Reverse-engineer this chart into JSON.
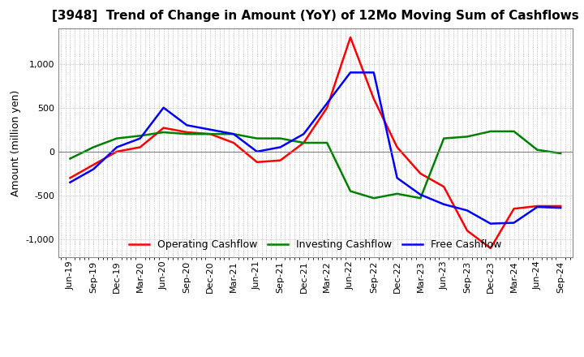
{
  "title": "[3948]  Trend of Change in Amount (YoY) of 12Mo Moving Sum of Cashflows",
  "ylabel": "Amount (million yen)",
  "ylim": [
    -1200,
    1400
  ],
  "yticks": [
    -1000,
    -500,
    0,
    500,
    1000
  ],
  "x_labels": [
    "Jun-19",
    "Sep-19",
    "Dec-19",
    "Mar-20",
    "Jun-20",
    "Sep-20",
    "Dec-20",
    "Mar-21",
    "Jun-21",
    "Sep-21",
    "Dec-21",
    "Mar-22",
    "Jun-22",
    "Sep-22",
    "Dec-22",
    "Mar-23",
    "Jun-23",
    "Sep-23",
    "Dec-23",
    "Mar-24",
    "Jun-24",
    "Sep-24"
  ],
  "operating": [
    -300,
    -150,
    0,
    50,
    270,
    220,
    200,
    100,
    -120,
    -100,
    100,
    500,
    1300,
    600,
    50,
    -250,
    -400,
    -900,
    -1100,
    -650,
    -620,
    -620
  ],
  "investing": [
    -80,
    50,
    150,
    180,
    220,
    200,
    200,
    200,
    150,
    150,
    100,
    100,
    -450,
    -530,
    -480,
    -530,
    150,
    170,
    230,
    230,
    20,
    -20
  ],
  "free": [
    -350,
    -200,
    50,
    150,
    500,
    300,
    250,
    200,
    0,
    50,
    200,
    550,
    900,
    900,
    -300,
    -490,
    -600,
    -670,
    -820,
    -810,
    -630,
    -640
  ],
  "operating_color": "#ff0000",
  "investing_color": "#008000",
  "free_color": "#0000ff",
  "line_width": 1.8,
  "grid_color": "#aaaaaa",
  "background_color": "#ffffff",
  "title_fontsize": 11,
  "label_fontsize": 9,
  "tick_fontsize": 8,
  "legend_fontsize": 9
}
